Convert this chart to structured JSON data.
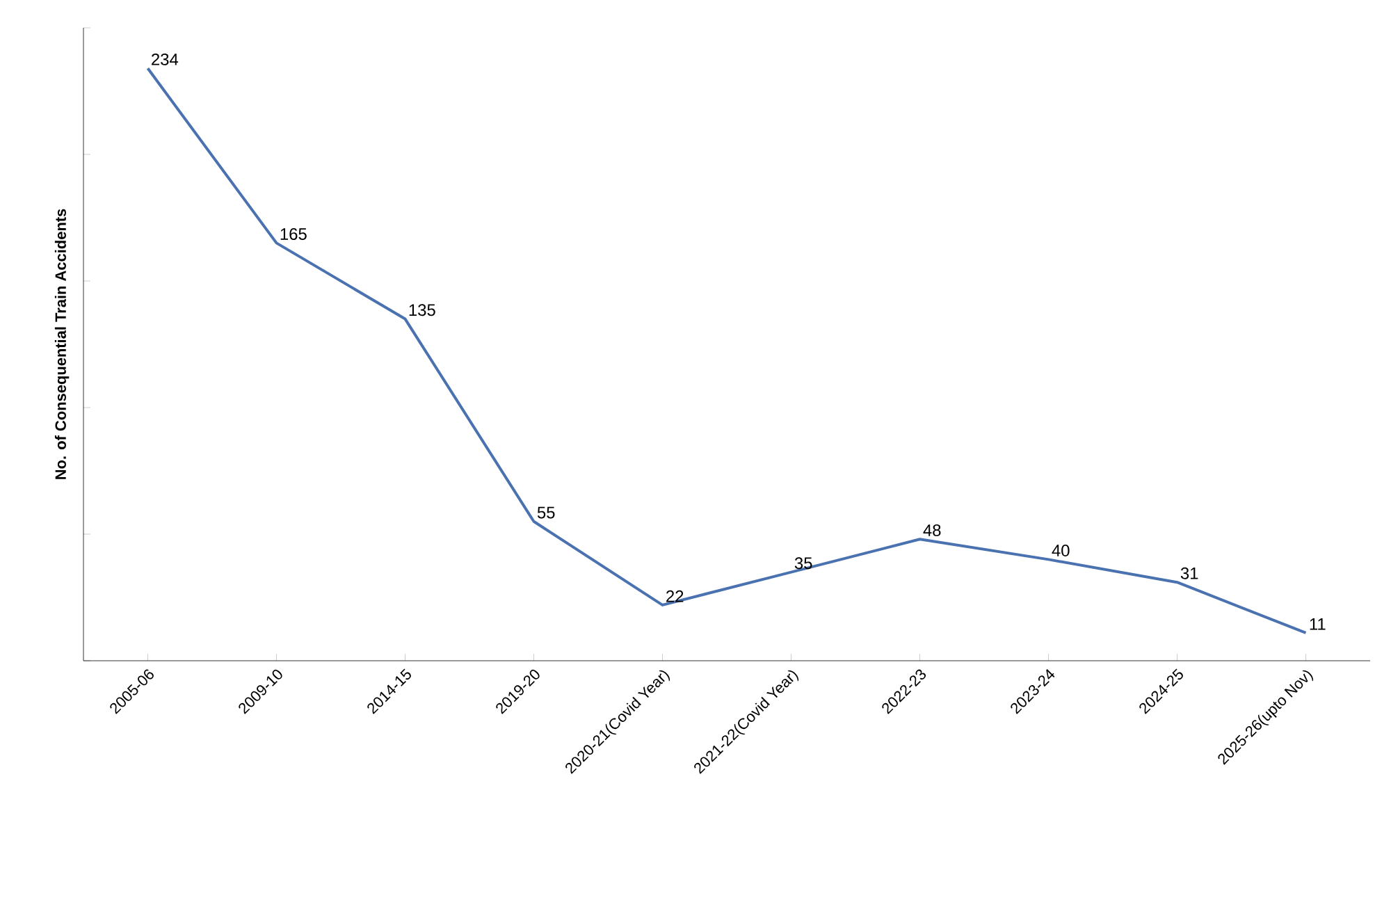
{
  "chart_data": {
    "type": "line",
    "ylabel": "No. of Consequential Train Accidents",
    "categories": [
      "2005-06",
      "2009-10",
      "2014-15",
      "2019-20",
      "2020-21(Covid Year)",
      "2021-22(Covid Year)",
      "2022-23",
      "2023-24",
      "2024-25",
      "2025-26(upto Nov)"
    ],
    "values": [
      234,
      165,
      135,
      55,
      22,
      35,
      48,
      40,
      31,
      11
    ],
    "color": "#4a72b0",
    "ylim": [
      0,
      250
    ],
    "yticks": [
      {
        "value": 0,
        "label": null
      },
      {
        "value": 50,
        "label": null
      },
      {
        "value": 100,
        "label": null
      },
      {
        "value": 150,
        "label": null
      },
      {
        "value": 200,
        "label": null
      },
      {
        "value": 250,
        "label": null
      }
    ],
    "tick_labels": "x",
    "data_labels": true,
    "grid": false,
    "marker": "none",
    "line_style": "solid"
  }
}
